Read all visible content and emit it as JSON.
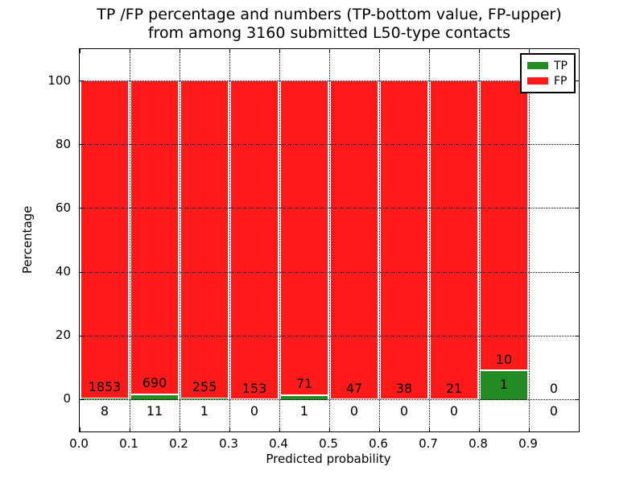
{
  "chart_data": {
    "type": "bar",
    "stacked": true,
    "orientation": "vertical",
    "title_line1": "TP /FP percentage and numbers (TP-bottom value, FP-upper)",
    "title_line2": "from among 3160 submitted L50-type contacts",
    "xlabel": "Predicted probability",
    "ylabel": "Percentage",
    "total_contacts": 3160,
    "xlim": [
      0.0,
      1.0
    ],
    "ylim": [
      -10,
      110
    ],
    "x_ticks": [
      0.0,
      0.1,
      0.2,
      0.3,
      0.4,
      0.5,
      0.6,
      0.7,
      0.8,
      0.9
    ],
    "y_ticks": [
      0,
      20,
      40,
      60,
      80,
      100
    ],
    "grid": "dotted",
    "legend": {
      "position": "upper right",
      "entries": [
        {
          "label": "TP",
          "color": "#228b22"
        },
        {
          "label": "FP",
          "color": "#ff1a1a"
        }
      ]
    },
    "bins": [
      {
        "x_range": [
          0.0,
          0.1
        ],
        "tp_count": 8,
        "fp_count": 1853
      },
      {
        "x_range": [
          0.1,
          0.2
        ],
        "tp_count": 11,
        "fp_count": 690
      },
      {
        "x_range": [
          0.2,
          0.3
        ],
        "tp_count": 1,
        "fp_count": 255
      },
      {
        "x_range": [
          0.3,
          0.4
        ],
        "tp_count": 0,
        "fp_count": 153
      },
      {
        "x_range": [
          0.4,
          0.5
        ],
        "tp_count": 1,
        "fp_count": 71
      },
      {
        "x_range": [
          0.5,
          0.6
        ],
        "tp_count": 0,
        "fp_count": 47
      },
      {
        "x_range": [
          0.6,
          0.7
        ],
        "tp_count": 0,
        "fp_count": 38
      },
      {
        "x_range": [
          0.7,
          0.8
        ],
        "tp_count": 0,
        "fp_count": 21
      },
      {
        "x_range": [
          0.8,
          0.9
        ],
        "tp_count": 1,
        "fp_count": 10
      },
      {
        "x_range": [
          0.9,
          1.0
        ],
        "tp_count": 0,
        "fp_count": 0
      }
    ]
  },
  "colors": {
    "tp": "#228b22",
    "fp": "#ff1a1a",
    "grid": "#000000",
    "frame": "#000000",
    "background": "#ffffff",
    "text": "#000000"
  }
}
